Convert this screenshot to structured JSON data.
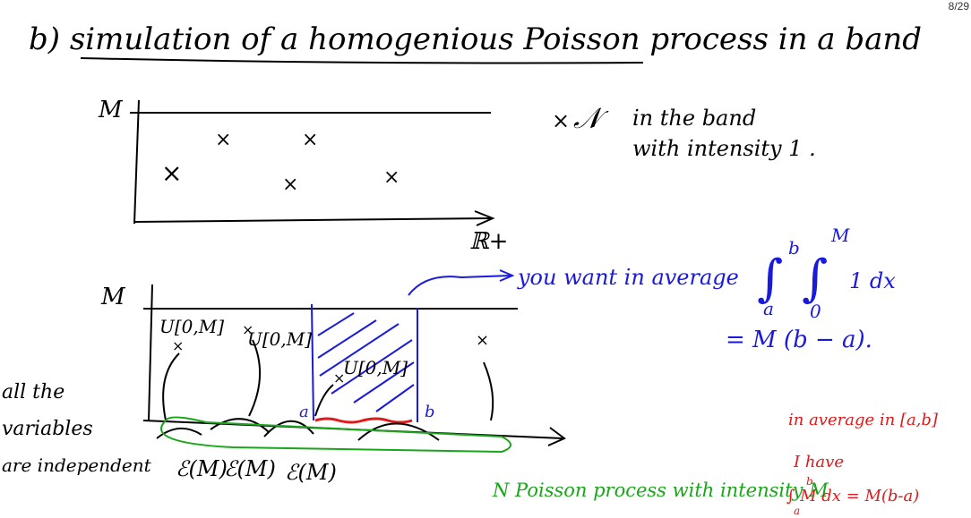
{
  "page": {
    "number": "8/29"
  },
  "heading": {
    "text": "b) simulation of a homogenious Poisson process in a band"
  },
  "top_plot": {
    "y_label": "M",
    "x_label": "ℝ+",
    "legend_marker": "×",
    "legend_text_1": "in the band",
    "legend_text_2": "with intensity 1 ."
  },
  "bottom_plot": {
    "y_label": "M",
    "uniform_label_1": "U[0,M]",
    "uniform_label_2": "U[0,M]",
    "uniform_label_3": "U[0,M]",
    "point_marker": "×",
    "a_label": "a",
    "b_label": "b",
    "exp_label_1": "ℰ(M)",
    "exp_label_2": "ℰ(M)",
    "exp_label_3": "ℰ(M)"
  },
  "blue_annotation": {
    "arrow_text": "you want in average",
    "integral_upper_outer": "b",
    "integral_lower_outer": "a",
    "integral_upper_inner": "M",
    "integral_lower_inner": "0",
    "integrand": "1 dx",
    "result": "= M (b − a)."
  },
  "left_note": {
    "line1": "all the",
    "line2": "variables",
    "line3": "are independent"
  },
  "green_note": {
    "text": "N Poisson process with intensity M"
  },
  "red_note": {
    "line1": "in average in [a,b]",
    "line2": "I have",
    "line3": "∫ M dx = M(b-a)",
    "int_upper": "b",
    "int_lower": "a"
  },
  "colors": {
    "ink": "#000000",
    "blue": "#1a1adc",
    "green": "#1aa51a",
    "red": "#e01a1a"
  }
}
